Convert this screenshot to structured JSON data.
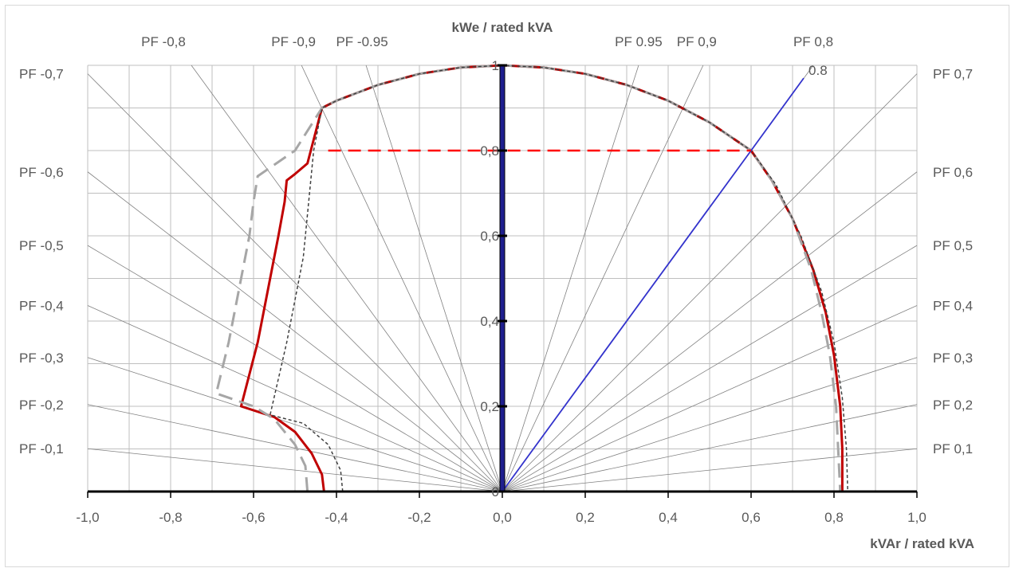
{
  "chart_data": {
    "type": "line",
    "title": "",
    "xlabel": "kVAr / rated kVA",
    "ylabel": "kWe / rated kVA",
    "xlim": [
      -1.0,
      1.0
    ],
    "ylim": [
      0,
      1
    ],
    "x_ticks": [
      "-1,0",
      "-0,8",
      "-0,6",
      "-0,4",
      "-0,2",
      "0,0",
      "0,2",
      "0,4",
      "0,6",
      "0,8",
      "1,0"
    ],
    "x_tick_values": [
      -1.0,
      -0.8,
      -0.6,
      -0.4,
      -0.2,
      0.0,
      0.2,
      0.4,
      0.6,
      0.8,
      1.0
    ],
    "y_ticks": [
      "0",
      "0,2",
      "0,4",
      "0,6",
      "0,8",
      "1"
    ],
    "y_tick_values": [
      0,
      0.2,
      0.4,
      0.6,
      0.8,
      1.0
    ],
    "grid": true,
    "pf_labels_left": [
      {
        "label": "PF -0,7",
        "pf": 0.7
      },
      {
        "label": "PF -0,6",
        "pf": 0.6
      },
      {
        "label": "PF -0,5",
        "pf": 0.5
      },
      {
        "label": "PF -0,4",
        "pf": 0.4
      },
      {
        "label": "PF -0,3",
        "pf": 0.3
      },
      {
        "label": "PF -0,2",
        "pf": 0.2
      },
      {
        "label": "PF -0,1",
        "pf": 0.1
      }
    ],
    "pf_labels_right": [
      {
        "label": "PF 0,7",
        "pf": 0.7
      },
      {
        "label": "PF 0,6",
        "pf": 0.6
      },
      {
        "label": "PF 0,5",
        "pf": 0.5
      },
      {
        "label": "PF 0,4",
        "pf": 0.4
      },
      {
        "label": "PF 0,3",
        "pf": 0.3
      },
      {
        "label": "PF 0,2",
        "pf": 0.2
      },
      {
        "label": "PF 0,1",
        "pf": 0.1
      }
    ],
    "pf_labels_top": [
      {
        "label": "PF -0,8",
        "pf": -0.8
      },
      {
        "label": "PF -0,9",
        "pf": -0.9
      },
      {
        "label": "PF -0.95",
        "pf": -0.95
      },
      {
        "label": "PF 0.95",
        "pf": 0.95
      },
      {
        "label": "PF 0,9",
        "pf": 0.9
      },
      {
        "label": "PF 0,8",
        "pf": 0.8
      }
    ],
    "pf_line_label": "0.8",
    "radial_pf_values": [
      -0.1,
      -0.2,
      -0.3,
      -0.4,
      -0.5,
      -0.6,
      -0.7,
      -0.8,
      -0.9,
      -0.95,
      0.95,
      0.9,
      0.8,
      0.7,
      0.6,
      0.5,
      0.4,
      0.3,
      0.2,
      0.1
    ],
    "series": [
      {
        "style": "solid",
        "color": "#c00000",
        "points": [
          [
            -0.43,
            0.0
          ],
          [
            -0.435,
            0.04
          ],
          [
            -0.46,
            0.09
          ],
          [
            -0.5,
            0.14
          ],
          [
            -0.55,
            0.175
          ],
          [
            -0.63,
            0.2
          ],
          [
            -0.59,
            0.35
          ],
          [
            -0.56,
            0.5
          ],
          [
            -0.54,
            0.6
          ],
          [
            -0.525,
            0.68
          ],
          [
            -0.52,
            0.73
          ],
          [
            -0.5,
            0.745
          ],
          [
            -0.47,
            0.77
          ],
          [
            -0.435,
            0.9
          ],
          [
            -0.4,
            0.917
          ],
          [
            -0.3,
            0.954
          ],
          [
            -0.2,
            0.98
          ],
          [
            -0.1,
            0.995
          ],
          [
            0.0,
            1.0
          ],
          [
            0.1,
            0.995
          ],
          [
            0.2,
            0.98
          ],
          [
            0.3,
            0.954
          ],
          [
            0.4,
            0.917
          ],
          [
            0.5,
            0.866
          ],
          [
            0.6,
            0.8
          ],
          [
            0.65,
            0.73
          ],
          [
            0.7,
            0.64
          ],
          [
            0.75,
            0.52
          ],
          [
            0.78,
            0.42
          ],
          [
            0.8,
            0.32
          ],
          [
            0.815,
            0.2
          ],
          [
            0.82,
            0.1
          ],
          [
            0.82,
            0.0
          ]
        ]
      },
      {
        "style": "dashed",
        "color": "#a6a6a6",
        "points": [
          [
            -0.47,
            0.0
          ],
          [
            -0.475,
            0.06
          ],
          [
            -0.5,
            0.11
          ],
          [
            -0.55,
            0.17
          ],
          [
            -0.6,
            0.2
          ],
          [
            -0.69,
            0.23
          ],
          [
            -0.66,
            0.35
          ],
          [
            -0.63,
            0.5
          ],
          [
            -0.61,
            0.6
          ],
          [
            -0.6,
            0.68
          ],
          [
            -0.59,
            0.74
          ],
          [
            -0.56,
            0.76
          ],
          [
            -0.5,
            0.8
          ],
          [
            -0.435,
            0.9
          ],
          [
            -0.4,
            0.917
          ],
          [
            -0.3,
            0.954
          ],
          [
            -0.2,
            0.98
          ],
          [
            -0.1,
            0.995
          ],
          [
            0.0,
            1.0
          ],
          [
            0.1,
            0.995
          ],
          [
            0.2,
            0.98
          ],
          [
            0.3,
            0.954
          ],
          [
            0.4,
            0.917
          ],
          [
            0.5,
            0.866
          ],
          [
            0.6,
            0.8
          ],
          [
            0.65,
            0.73
          ],
          [
            0.7,
            0.64
          ],
          [
            0.745,
            0.52
          ],
          [
            0.77,
            0.42
          ],
          [
            0.79,
            0.32
          ],
          [
            0.805,
            0.2
          ],
          [
            0.81,
            0.1
          ],
          [
            0.815,
            0.0
          ]
        ]
      },
      {
        "style": "dotted",
        "color": "#404040",
        "points": [
          [
            -0.385,
            0.0
          ],
          [
            -0.39,
            0.05
          ],
          [
            -0.42,
            0.11
          ],
          [
            -0.48,
            0.16
          ],
          [
            -0.56,
            0.18
          ],
          [
            -0.52,
            0.35
          ],
          [
            -0.48,
            0.55
          ],
          [
            -0.465,
            0.7
          ],
          [
            -0.455,
            0.8
          ],
          [
            -0.435,
            0.9
          ],
          [
            -0.4,
            0.917
          ],
          [
            -0.3,
            0.954
          ],
          [
            -0.2,
            0.98
          ],
          [
            -0.1,
            0.995
          ],
          [
            0.0,
            1.0
          ],
          [
            0.1,
            0.995
          ],
          [
            0.2,
            0.98
          ],
          [
            0.3,
            0.954
          ],
          [
            0.4,
            0.917
          ],
          [
            0.5,
            0.866
          ],
          [
            0.6,
            0.8
          ],
          [
            0.66,
            0.72
          ],
          [
            0.72,
            0.6
          ],
          [
            0.77,
            0.47
          ],
          [
            0.8,
            0.35
          ],
          [
            0.82,
            0.22
          ],
          [
            0.83,
            0.1
          ],
          [
            0.833,
            0.0
          ]
        ]
      },
      {
        "style": "solid",
        "color": "#3333cc",
        "points": [
          [
            0.0,
            0.0
          ],
          [
            0.6,
            0.8
          ],
          [
            0.727,
            0.97
          ]
        ]
      }
    ],
    "reference_line": {
      "y": 0.8,
      "x_from": -0.42,
      "x_to": 0.6,
      "color": "#ff0000",
      "style": "dashed"
    }
  }
}
